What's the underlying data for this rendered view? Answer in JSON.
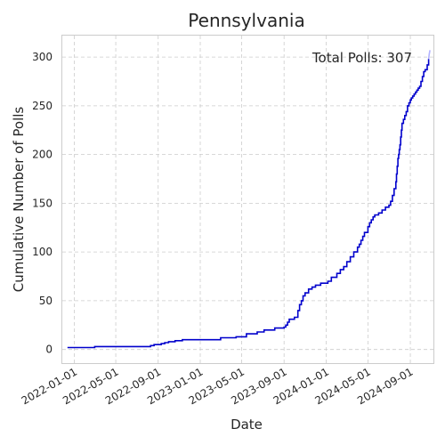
{
  "chart_data": {
    "type": "line",
    "title": "Pennsylvania",
    "xlabel": "Date",
    "ylabel": "Cumulative Number of Polls",
    "x_type": "date",
    "xlim": [
      "2021-11-27",
      "2024-11-07"
    ],
    "ylim": [
      -14,
      322
    ],
    "x_ticks": [
      "2022-01-01",
      "2022-05-01",
      "2022-09-01",
      "2023-01-01",
      "2023-05-01",
      "2023-09-01",
      "2024-01-01",
      "2024-05-01",
      "2024-09-01"
    ],
    "y_ticks": [
      0,
      50,
      100,
      150,
      200,
      250,
      300
    ],
    "grid": true,
    "annotation": "Total Polls: 307",
    "series": [
      {
        "color": "#0000cc",
        "fade_color": "#b3b3ff",
        "x": [
          "2021-12-12",
          "2022-02-10",
          "2022-03-01",
          "2022-06-01",
          "2022-08-10",
          "2022-08-20",
          "2022-09-10",
          "2022-09-20",
          "2022-10-01",
          "2022-10-20",
          "2022-11-10",
          "2023-03-01",
          "2023-03-20",
          "2023-04-15",
          "2023-05-15",
          "2023-06-15",
          "2023-07-05",
          "2023-08-05",
          "2023-08-22",
          "2023-09-01",
          "2023-09-06",
          "2023-09-11",
          "2023-09-16",
          "2023-10-01",
          "2023-10-11",
          "2023-10-16",
          "2023-10-21",
          "2023-10-26",
          "2023-11-01",
          "2023-11-11",
          "2023-11-21",
          "2023-12-01",
          "2023-12-16",
          "2024-01-06",
          "2024-01-16",
          "2024-02-01",
          "2024-02-11",
          "2024-02-21",
          "2024-03-01",
          "2024-03-11",
          "2024-03-21",
          "2024-04-01",
          "2024-04-06",
          "2024-04-11",
          "2024-04-16",
          "2024-04-21",
          "2024-05-01",
          "2024-05-06",
          "2024-05-11",
          "2024-05-16",
          "2024-05-21",
          "2024-06-01",
          "2024-06-11",
          "2024-06-21",
          "2024-07-01",
          "2024-07-06",
          "2024-07-11",
          "2024-07-16",
          "2024-07-21",
          "2024-07-23",
          "2024-07-25",
          "2024-07-27",
          "2024-07-29",
          "2024-07-31",
          "2024-08-02",
          "2024-08-04",
          "2024-08-06",
          "2024-08-08",
          "2024-08-12",
          "2024-08-16",
          "2024-08-20",
          "2024-08-24",
          "2024-08-28",
          "2024-09-01",
          "2024-09-04",
          "2024-09-08",
          "2024-09-12",
          "2024-09-16",
          "2024-09-20",
          "2024-09-24",
          "2024-09-28",
          "2024-10-02",
          "2024-10-06",
          "2024-10-10",
          "2024-10-14",
          "2024-10-20",
          "2024-10-24",
          "2024-10-26",
          "2024-10-28"
        ],
        "y": [
          2,
          2,
          3,
          3,
          4,
          5,
          6,
          7,
          8,
          9,
          10,
          12,
          12,
          13,
          16,
          18,
          20,
          22,
          22,
          23,
          25,
          28,
          31,
          33,
          40,
          46,
          50,
          55,
          58,
          62,
          64,
          66,
          68,
          70,
          74,
          78,
          82,
          85,
          90,
          95,
          100,
          105,
          108,
          112,
          116,
          120,
          126,
          130,
          133,
          136,
          138,
          140,
          143,
          146,
          148,
          152,
          158,
          165,
          172,
          180,
          188,
          196,
          200,
          205,
          210,
          218,
          225,
          232,
          236,
          240,
          244,
          250,
          253,
          256,
          258,
          260,
          262,
          264,
          266,
          268,
          270,
          275,
          280,
          285,
          287,
          292,
          298,
          303,
          307
        ]
      }
    ]
  }
}
